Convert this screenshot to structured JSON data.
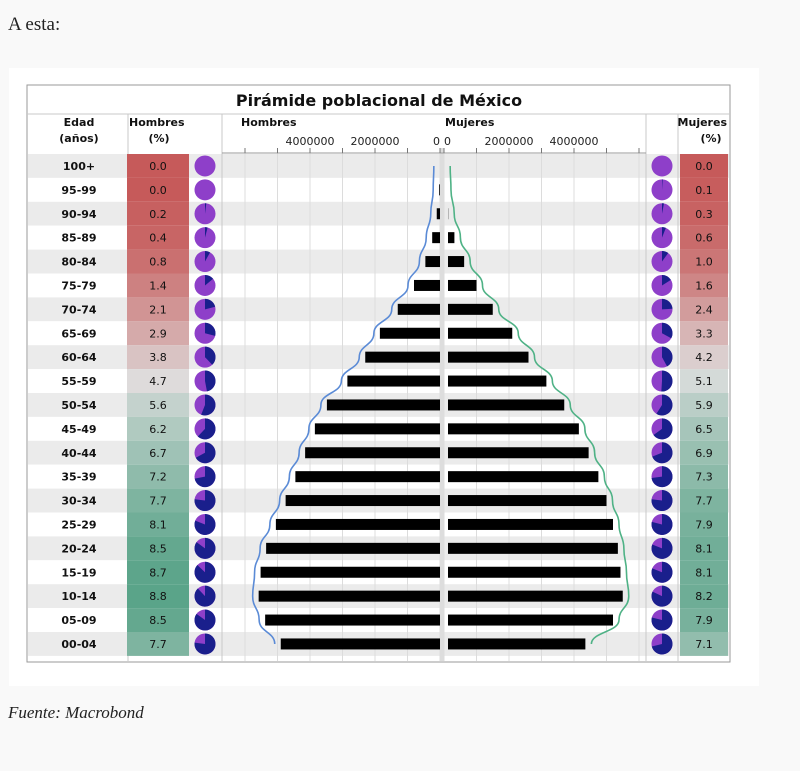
{
  "intro_text": "A esta:",
  "source_text": "Fuente: Macrobond",
  "chart_data": {
    "type": "bar",
    "title": "Pirámide poblacional de México",
    "headers": {
      "age": [
        "Edad",
        "(años)"
      ],
      "men_pct": [
        "Hombres",
        "(%)"
      ],
      "men_bars": "Hombres",
      "women_bars": "Mujeres",
      "women_pct": [
        "Mujeres",
        "(%)"
      ]
    },
    "categories": [
      "100+",
      "95-99",
      "90-94",
      "85-89",
      "80-84",
      "75-79",
      "70-74",
      "65-69",
      "60-64",
      "55-59",
      "50-54",
      "45-49",
      "40-44",
      "35-39",
      "30-34",
      "25-29",
      "20-24",
      "15-19",
      "10-14",
      "05-09",
      "00-04"
    ],
    "men_axis_ticks": [
      "4000000",
      "2000000",
      "0"
    ],
    "women_axis_ticks": [
      "0",
      "2000000",
      "4000000"
    ],
    "xlim": [
      0,
      6500000
    ],
    "series": [
      {
        "name": "Hombres",
        "values": [
          5000,
          25000,
          100000,
          240000,
          450000,
          800000,
          1300000,
          1850000,
          2300000,
          2850000,
          3480000,
          3850000,
          4150000,
          4450000,
          4750000,
          5050000,
          5350000,
          5520000,
          5580000,
          5380000,
          4900000
        ]
      },
      {
        "name": "Mujeres",
        "values": [
          5000,
          30000,
          130000,
          320000,
          620000,
          1000000,
          1500000,
          2100000,
          2600000,
          3150000,
          3700000,
          4150000,
          4450000,
          4750000,
          5000000,
          5200000,
          5350000,
          5430000,
          5500000,
          5200000,
          4350000
        ]
      }
    ],
    "men_pct": [
      "0.0",
      "0.0",
      "0.2",
      "0.4",
      "0.8",
      "1.4",
      "2.1",
      "2.9",
      "3.8",
      "4.7",
      "5.6",
      "6.2",
      "6.7",
      "7.2",
      "7.7",
      "8.1",
      "8.5",
      "8.7",
      "8.8",
      "8.5",
      "7.7"
    ],
    "women_pct": [
      "0.0",
      "0.1",
      "0.3",
      "0.6",
      "1.0",
      "1.6",
      "2.4",
      "3.3",
      "4.2",
      "5.1",
      "5.9",
      "6.5",
      "6.9",
      "7.3",
      "7.7",
      "7.9",
      "8.1",
      "8.1",
      "8.2",
      "7.9",
      "7.1"
    ],
    "colors": {
      "bar": "#000000",
      "men_line": "#5b8bd6",
      "women_line": "#4fb286",
      "pie_fill": "#8e3fc9",
      "pie_slice": "#1a1f8c",
      "pct_high": "#c65a5a",
      "pct_mid": "#dedede",
      "pct_low": "#5aa489",
      "stripe": "#ebebeb"
    }
  }
}
